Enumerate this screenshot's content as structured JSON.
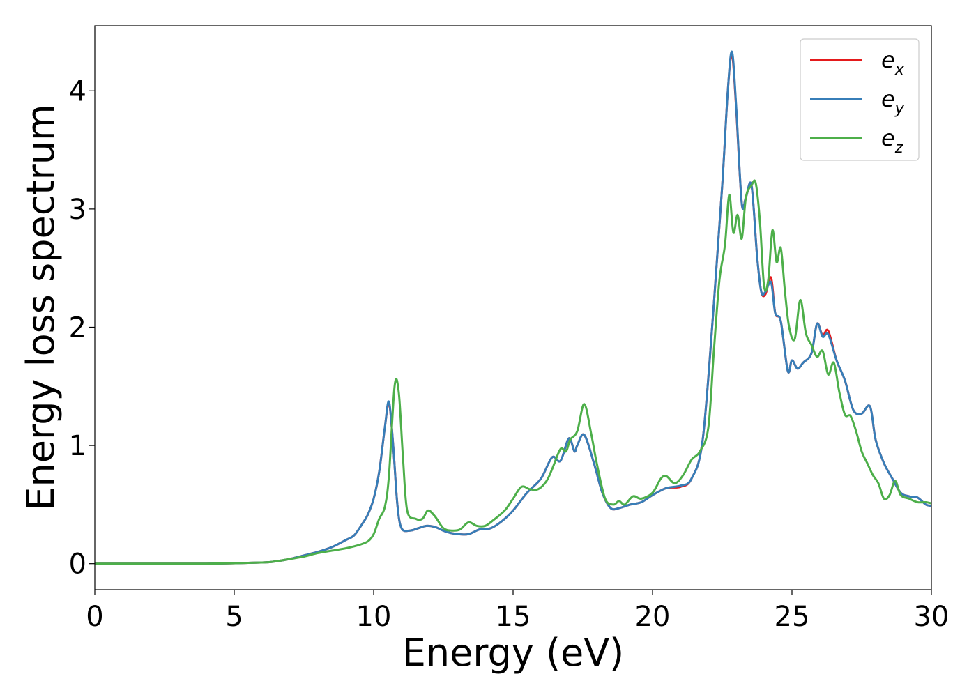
{
  "chart_data": {
    "type": "line",
    "xlabel": "Energy (eV)",
    "ylabel": "Energy loss spectrum",
    "xlim": [
      0,
      30
    ],
    "ylim": [
      -0.22,
      4.55
    ],
    "xticks": [
      0,
      5,
      10,
      15,
      20,
      25,
      30
    ],
    "yticks": [
      0,
      1,
      2,
      3,
      4
    ],
    "grid": false,
    "legend_position": "top-right",
    "series": [
      {
        "name": "e_x",
        "label_base": "e",
        "label_sub": "x",
        "color": "#e41a1c",
        "x": [
          0,
          4,
          6,
          6.5,
          7,
          7.5,
          8,
          8.5,
          9,
          9.3,
          9.6,
          9.8,
          10,
          10.2,
          10.4,
          10.55,
          10.7,
          10.85,
          11,
          11.3,
          11.6,
          11.9,
          12.2,
          12.6,
          13,
          13.4,
          13.8,
          14.2,
          14.6,
          15,
          15.5,
          16,
          16.4,
          16.7,
          17,
          17.2,
          17.3,
          17.55,
          17.9,
          18.2,
          18.5,
          18.8,
          19.2,
          19.6,
          20,
          20.5,
          21,
          21.4,
          21.8,
          22.2,
          22.5,
          22.7,
          22.85,
          23,
          23.2,
          23.35,
          23.55,
          23.75,
          23.9,
          24.05,
          24.25,
          24.4,
          24.6,
          24.85,
          25,
          25.2,
          25.4,
          25.7,
          25.9,
          26.1,
          26.3,
          26.6,
          26.9,
          27.2,
          27.5,
          27.8,
          28,
          28.3,
          28.6,
          28.9,
          29.2,
          29.5,
          29.8,
          30
        ],
        "y": [
          0,
          0,
          0.01,
          0.02,
          0.04,
          0.07,
          0.1,
          0.14,
          0.2,
          0.24,
          0.34,
          0.42,
          0.55,
          0.78,
          1.15,
          1.36,
          1.0,
          0.5,
          0.3,
          0.28,
          0.3,
          0.32,
          0.31,
          0.27,
          0.25,
          0.25,
          0.29,
          0.3,
          0.36,
          0.45,
          0.6,
          0.72,
          0.9,
          0.87,
          1.06,
          0.95,
          1.0,
          1.09,
          0.85,
          0.6,
          0.47,
          0.47,
          0.5,
          0.52,
          0.58,
          0.64,
          0.65,
          0.72,
          1.05,
          2.2,
          3.2,
          4.0,
          4.31,
          3.85,
          3.05,
          3.1,
          3.2,
          2.6,
          2.3,
          2.28,
          2.42,
          2.12,
          2.05,
          1.63,
          1.72,
          1.65,
          1.7,
          1.78,
          2.03,
          1.93,
          1.97,
          1.72,
          1.55,
          1.3,
          1.27,
          1.33,
          1.05,
          0.85,
          0.72,
          0.6,
          0.57,
          0.56,
          0.5,
          0.49
        ]
      },
      {
        "name": "e_y",
        "label_base": "e",
        "label_sub": "y",
        "color": "#377eb8",
        "x": [
          0,
          4,
          6,
          6.5,
          7,
          7.5,
          8,
          8.5,
          9,
          9.3,
          9.6,
          9.8,
          10,
          10.2,
          10.4,
          10.55,
          10.7,
          10.85,
          11,
          11.3,
          11.6,
          11.9,
          12.2,
          12.6,
          13,
          13.4,
          13.8,
          14.2,
          14.6,
          15,
          15.5,
          16,
          16.4,
          16.7,
          17,
          17.2,
          17.3,
          17.55,
          17.9,
          18.2,
          18.5,
          18.8,
          19.2,
          19.6,
          20,
          20.5,
          21,
          21.4,
          21.8,
          22.2,
          22.5,
          22.7,
          22.85,
          23,
          23.2,
          23.35,
          23.55,
          23.75,
          23.9,
          24.05,
          24.25,
          24.4,
          24.6,
          24.85,
          25,
          25.2,
          25.4,
          25.7,
          25.9,
          26.1,
          26.3,
          26.6,
          26.9,
          27.2,
          27.5,
          27.8,
          28,
          28.3,
          28.6,
          28.9,
          29.2,
          29.5,
          29.8,
          30
        ],
        "y": [
          0,
          0,
          0.01,
          0.02,
          0.04,
          0.07,
          0.1,
          0.14,
          0.2,
          0.24,
          0.34,
          0.42,
          0.55,
          0.78,
          1.15,
          1.37,
          1.0,
          0.5,
          0.3,
          0.28,
          0.3,
          0.32,
          0.31,
          0.27,
          0.25,
          0.25,
          0.29,
          0.3,
          0.36,
          0.45,
          0.6,
          0.72,
          0.9,
          0.87,
          1.06,
          0.95,
          1.0,
          1.09,
          0.85,
          0.6,
          0.47,
          0.47,
          0.5,
          0.52,
          0.58,
          0.64,
          0.66,
          0.72,
          1.05,
          2.2,
          3.2,
          4.0,
          4.33,
          3.87,
          3.05,
          3.1,
          3.2,
          2.6,
          2.3,
          2.3,
          2.38,
          2.12,
          2.05,
          1.63,
          1.72,
          1.65,
          1.7,
          1.78,
          2.03,
          1.92,
          1.94,
          1.72,
          1.55,
          1.3,
          1.27,
          1.33,
          1.05,
          0.85,
          0.72,
          0.6,
          0.57,
          0.56,
          0.5,
          0.49
        ]
      },
      {
        "name": "e_z",
        "label_base": "e",
        "label_sub": "z",
        "color": "#4daf4a",
        "x": [
          0,
          4,
          6,
          6.5,
          7,
          7.5,
          8,
          8.5,
          9,
          9.5,
          9.8,
          10,
          10.2,
          10.4,
          10.55,
          10.75,
          10.9,
          11.05,
          11.2,
          11.5,
          11.75,
          11.95,
          12.2,
          12.5,
          12.8,
          13.1,
          13.4,
          13.7,
          14,
          14.3,
          14.7,
          15,
          15.3,
          15.6,
          15.9,
          16.2,
          16.4,
          16.7,
          16.9,
          17.05,
          17.3,
          17.55,
          17.8,
          18,
          18.3,
          18.6,
          18.8,
          19,
          19.3,
          19.6,
          20,
          20.3,
          20.5,
          20.8,
          21.1,
          21.4,
          21.7,
          22,
          22.2,
          22.4,
          22.6,
          22.75,
          22.9,
          23.05,
          23.2,
          23.35,
          23.55,
          23.7,
          23.85,
          24,
          24.15,
          24.3,
          24.45,
          24.6,
          24.75,
          24.9,
          25.1,
          25.3,
          25.5,
          25.7,
          25.9,
          26.1,
          26.3,
          26.5,
          26.7,
          26.9,
          27.1,
          27.3,
          27.5,
          27.7,
          27.9,
          28.1,
          28.3,
          28.5,
          28.7,
          28.9,
          29.2,
          29.5,
          29.8,
          30
        ],
        "y": [
          0,
          0,
          0.01,
          0.02,
          0.04,
          0.06,
          0.09,
          0.11,
          0.13,
          0.16,
          0.19,
          0.25,
          0.38,
          0.48,
          0.75,
          1.5,
          1.45,
          0.9,
          0.45,
          0.38,
          0.38,
          0.45,
          0.4,
          0.3,
          0.28,
          0.29,
          0.35,
          0.32,
          0.32,
          0.37,
          0.45,
          0.55,
          0.65,
          0.63,
          0.63,
          0.7,
          0.8,
          0.97,
          0.95,
          1.05,
          1.12,
          1.35,
          1.1,
          0.85,
          0.55,
          0.5,
          0.53,
          0.5,
          0.57,
          0.55,
          0.6,
          0.72,
          0.74,
          0.68,
          0.75,
          0.88,
          0.95,
          1.15,
          1.8,
          2.4,
          2.7,
          3.12,
          2.8,
          2.95,
          2.75,
          3.1,
          3.2,
          3.22,
          2.9,
          2.35,
          2.4,
          2.82,
          2.55,
          2.67,
          2.3,
          2.0,
          1.9,
          2.23,
          1.95,
          1.85,
          1.75,
          1.8,
          1.6,
          1.7,
          1.45,
          1.26,
          1.25,
          1.12,
          0.95,
          0.85,
          0.75,
          0.68,
          0.55,
          0.58,
          0.7,
          0.58,
          0.55,
          0.52,
          0.52,
          0.51
        ]
      }
    ]
  }
}
